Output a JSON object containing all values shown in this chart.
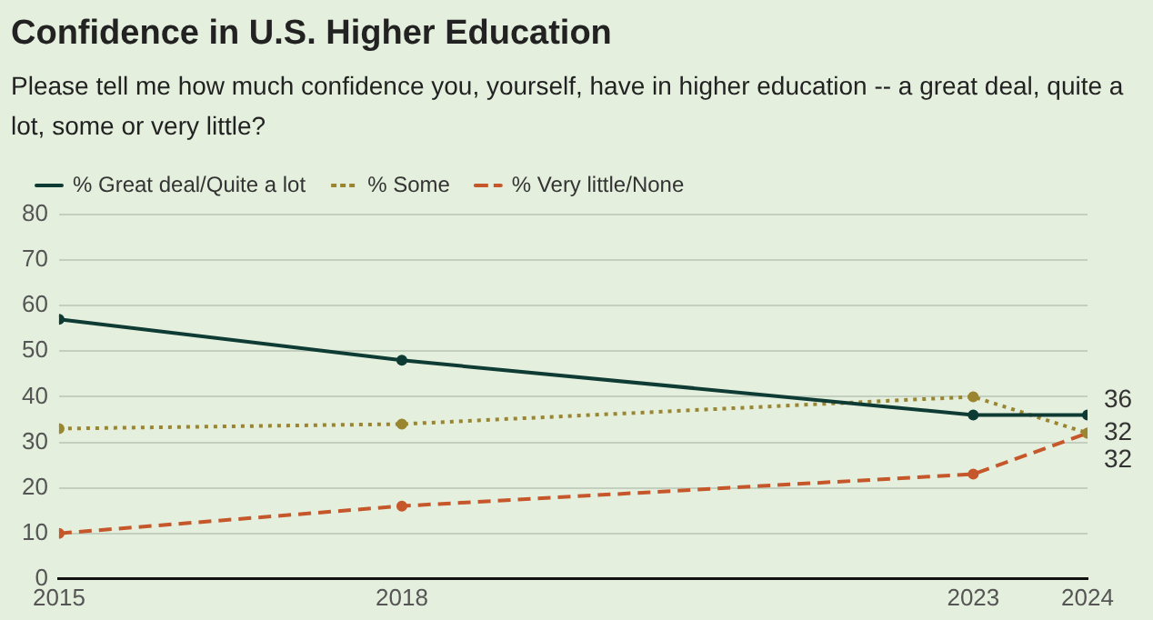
{
  "chart_data": {
    "type": "line",
    "title": "Confidence in U.S. Higher Education",
    "subtitle": "Please tell me how much confidence you, yourself, have in higher education -- a great deal, quite a lot, some or very little?",
    "x": [
      2015,
      2018,
      2023,
      2024
    ],
    "xlim": [
      2015,
      2024
    ],
    "xticks": [
      2015,
      2018,
      2023,
      2024
    ],
    "ylim": [
      0,
      80
    ],
    "yticks": [
      0,
      10,
      20,
      30,
      40,
      50,
      60,
      70,
      80
    ],
    "grid": "y",
    "legend": "top left",
    "marker": "circle",
    "series": [
      {
        "name": "% Great deal/Quite a lot",
        "color": "#0e3b33",
        "line_style": "solid",
        "values": [
          57,
          48,
          36,
          36
        ],
        "value_labels": [
          null,
          null,
          null,
          "36"
        ]
      },
      {
        "name": "% Some",
        "color": "#9a8530",
        "line_style": "dotted",
        "values": [
          33,
          34,
          40,
          32
        ],
        "value_labels": [
          null,
          null,
          null,
          "32"
        ]
      },
      {
        "name": "% Very little/None",
        "color": "#c6572b",
        "line_style": "dashed",
        "values": [
          10,
          16,
          23,
          32
        ],
        "value_labels": [
          null,
          null,
          null,
          "32"
        ]
      }
    ]
  }
}
